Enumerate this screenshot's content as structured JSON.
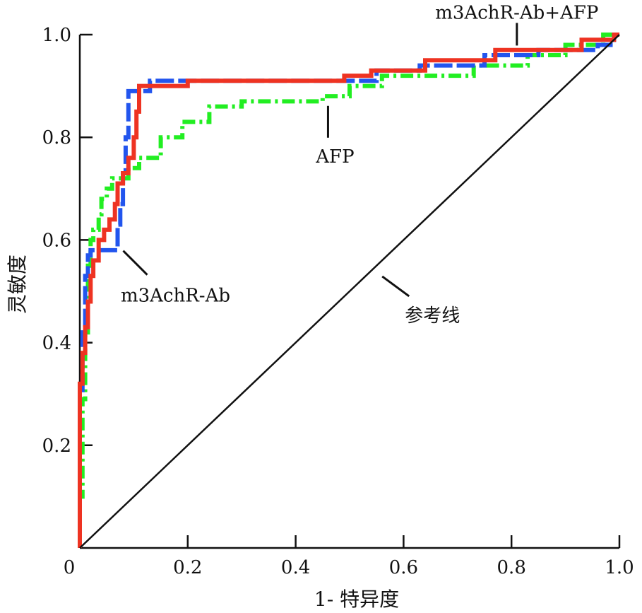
{
  "chart_data": {
    "type": "line",
    "title": "",
    "xlabel": "1- 特异度",
    "ylabel": "灵敏度",
    "xlim": [
      0,
      1
    ],
    "ylim": [
      0,
      1
    ],
    "x_ticks": [
      "0",
      "0.2",
      "0.4",
      "0.6",
      "0.8",
      "1.0"
    ],
    "y_ticks": [
      "0.2",
      "0.4",
      "0.6",
      "0.8",
      "1.0"
    ],
    "grid": false,
    "series": [
      {
        "name": "m3AchR-Ab+AFP",
        "color": "#ee3322",
        "style": "solid",
        "points": [
          [
            0,
            0
          ],
          [
            0,
            0.32
          ],
          [
            0.005,
            0.32
          ],
          [
            0.005,
            0.38
          ],
          [
            0.01,
            0.38
          ],
          [
            0.01,
            0.43
          ],
          [
            0.015,
            0.43
          ],
          [
            0.015,
            0.48
          ],
          [
            0.02,
            0.48
          ],
          [
            0.02,
            0.53
          ],
          [
            0.025,
            0.53
          ],
          [
            0.025,
            0.56
          ],
          [
            0.035,
            0.56
          ],
          [
            0.035,
            0.6
          ],
          [
            0.045,
            0.6
          ],
          [
            0.045,
            0.62
          ],
          [
            0.055,
            0.62
          ],
          [
            0.055,
            0.64
          ],
          [
            0.065,
            0.64
          ],
          [
            0.065,
            0.67
          ],
          [
            0.07,
            0.67
          ],
          [
            0.07,
            0.71
          ],
          [
            0.08,
            0.71
          ],
          [
            0.08,
            0.73
          ],
          [
            0.09,
            0.73
          ],
          [
            0.09,
            0.76
          ],
          [
            0.1,
            0.76
          ],
          [
            0.1,
            0.8
          ],
          [
            0.105,
            0.8
          ],
          [
            0.105,
            0.85
          ],
          [
            0.11,
            0.85
          ],
          [
            0.11,
            0.9
          ],
          [
            0.2,
            0.9
          ],
          [
            0.2,
            0.91
          ],
          [
            0.49,
            0.91
          ],
          [
            0.49,
            0.92
          ],
          [
            0.54,
            0.92
          ],
          [
            0.54,
            0.93
          ],
          [
            0.64,
            0.93
          ],
          [
            0.64,
            0.95
          ],
          [
            0.77,
            0.95
          ],
          [
            0.77,
            0.97
          ],
          [
            0.93,
            0.97
          ],
          [
            0.93,
            0.99
          ],
          [
            0.99,
            0.99
          ],
          [
            0.99,
            1
          ],
          [
            1,
            1
          ]
        ]
      },
      {
        "name": "m3AchR-Ab",
        "color": "#2255ee",
        "style": "dashed",
        "points": [
          [
            0,
            0
          ],
          [
            0,
            0.3
          ],
          [
            0.005,
            0.3
          ],
          [
            0.005,
            0.42
          ],
          [
            0.01,
            0.42
          ],
          [
            0.01,
            0.53
          ],
          [
            0.015,
            0.53
          ],
          [
            0.015,
            0.57
          ],
          [
            0.02,
            0.57
          ],
          [
            0.02,
            0.58
          ],
          [
            0.07,
            0.58
          ],
          [
            0.07,
            0.63
          ],
          [
            0.075,
            0.63
          ],
          [
            0.075,
            0.67
          ],
          [
            0.08,
            0.67
          ],
          [
            0.08,
            0.73
          ],
          [
            0.085,
            0.73
          ],
          [
            0.085,
            0.8
          ],
          [
            0.09,
            0.8
          ],
          [
            0.09,
            0.89
          ],
          [
            0.13,
            0.89
          ],
          [
            0.13,
            0.91
          ],
          [
            0.55,
            0.91
          ],
          [
            0.55,
            0.93
          ],
          [
            0.63,
            0.93
          ],
          [
            0.63,
            0.94
          ],
          [
            0.75,
            0.94
          ],
          [
            0.75,
            0.96
          ],
          [
            0.85,
            0.96
          ],
          [
            0.85,
            0.97
          ],
          [
            0.96,
            0.97
          ],
          [
            0.96,
            0.98
          ],
          [
            0.99,
            0.98
          ],
          [
            0.99,
            1
          ],
          [
            1,
            1
          ]
        ]
      },
      {
        "name": "AFP",
        "color": "#22ee22",
        "style": "dash-dot",
        "points": [
          [
            0,
            0
          ],
          [
            0,
            0.1
          ],
          [
            0.005,
            0.1
          ],
          [
            0.005,
            0.29
          ],
          [
            0.01,
            0.29
          ],
          [
            0.01,
            0.42
          ],
          [
            0.015,
            0.42
          ],
          [
            0.015,
            0.55
          ],
          [
            0.02,
            0.55
          ],
          [
            0.02,
            0.6
          ],
          [
            0.025,
            0.6
          ],
          [
            0.025,
            0.62
          ],
          [
            0.035,
            0.62
          ],
          [
            0.035,
            0.65
          ],
          [
            0.04,
            0.65
          ],
          [
            0.04,
            0.68
          ],
          [
            0.05,
            0.68
          ],
          [
            0.05,
            0.7
          ],
          [
            0.06,
            0.7
          ],
          [
            0.06,
            0.72
          ],
          [
            0.09,
            0.72
          ],
          [
            0.09,
            0.74
          ],
          [
            0.11,
            0.74
          ],
          [
            0.11,
            0.76
          ],
          [
            0.15,
            0.76
          ],
          [
            0.15,
            0.8
          ],
          [
            0.19,
            0.8
          ],
          [
            0.19,
            0.83
          ],
          [
            0.24,
            0.83
          ],
          [
            0.24,
            0.86
          ],
          [
            0.3,
            0.86
          ],
          [
            0.3,
            0.87
          ],
          [
            0.45,
            0.87
          ],
          [
            0.45,
            0.88
          ],
          [
            0.5,
            0.88
          ],
          [
            0.5,
            0.9
          ],
          [
            0.56,
            0.9
          ],
          [
            0.56,
            0.92
          ],
          [
            0.73,
            0.92
          ],
          [
            0.73,
            0.94
          ],
          [
            0.83,
            0.94
          ],
          [
            0.83,
            0.96
          ],
          [
            0.9,
            0.96
          ],
          [
            0.9,
            0.98
          ],
          [
            0.97,
            0.98
          ],
          [
            0.97,
            1
          ],
          [
            1,
            1
          ]
        ]
      },
      {
        "name": "参考线",
        "color": "#111111",
        "style": "solid",
        "points": [
          [
            0,
            0
          ],
          [
            1,
            1
          ]
        ]
      }
    ],
    "annotations": [
      {
        "text": "m3AchR-Ab+AFP",
        "series": "m3AchR-Ab+AFP",
        "point": [
          0.81,
          0.965
        ]
      },
      {
        "text": "AFP",
        "series": "AFP",
        "point": [
          0.46,
          0.875
        ]
      },
      {
        "text": "m3AchR-Ab",
        "series": "m3AchR-Ab",
        "point": [
          0.07,
          0.59
        ]
      },
      {
        "text": "参考线",
        "series": "参考线",
        "point": [
          0.55,
          0.54
        ]
      }
    ]
  }
}
